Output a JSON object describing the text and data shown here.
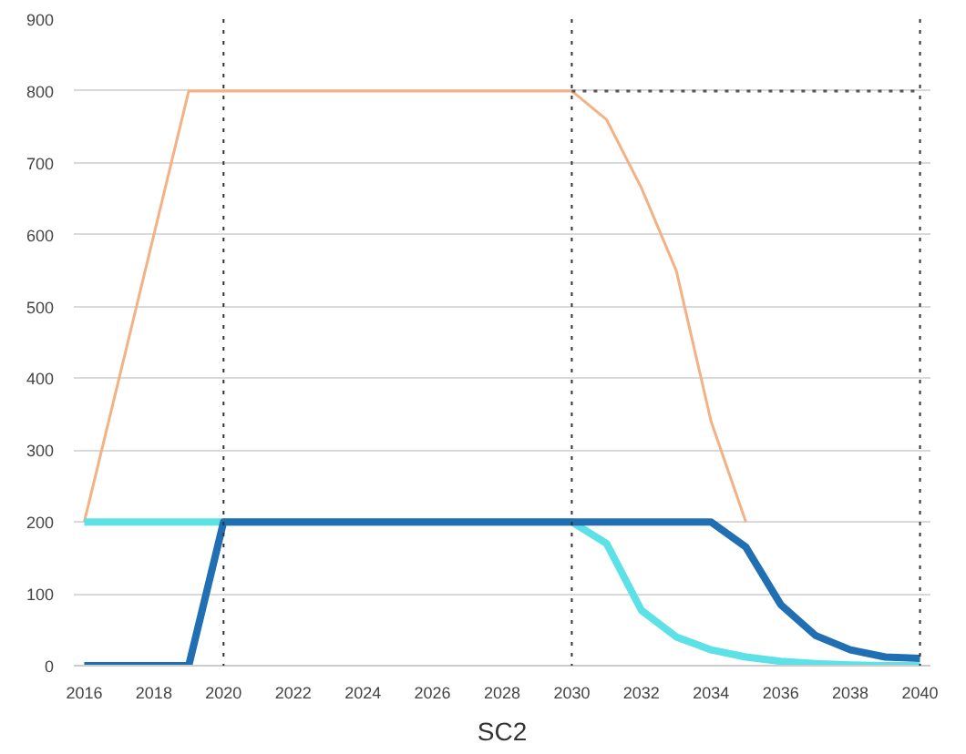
{
  "chart_data": {
    "type": "line",
    "title": "SC2",
    "x": [
      2016,
      2017,
      2018,
      2019,
      2020,
      2021,
      2022,
      2023,
      2024,
      2025,
      2026,
      2027,
      2028,
      2029,
      2030,
      2031,
      2032,
      2033,
      2034,
      2035,
      2036,
      2037,
      2038,
      2039,
      2040
    ],
    "series": [
      {
        "color": "#f4b183",
        "x": [
          2016,
          2019,
          2020,
          2030,
          2031,
          2032,
          2033,
          2034,
          2035
        ],
        "values": [
          200,
          800,
          800,
          800,
          760,
          665,
          550,
          340,
          200
        ]
      },
      {
        "color": "#5ce1e6",
        "values": [
          200,
          200,
          200,
          200,
          200,
          200,
          200,
          200,
          200,
          200,
          200,
          200,
          200,
          200,
          200,
          170,
          77,
          40,
          22,
          12,
          6,
          3,
          1,
          0,
          0
        ]
      },
      {
        "color": "#1f6fb2",
        "values": [
          0,
          0,
          0,
          0,
          200,
          200,
          200,
          200,
          200,
          200,
          200,
          200,
          200,
          200,
          200,
          200,
          200,
          200,
          200,
          165,
          85,
          42,
          22,
          12,
          10
        ]
      },
      {
        "color": "#555555",
        "x": [
          2030,
          2040
        ],
        "values": [
          800,
          800
        ],
        "line_style": "dotted"
      }
    ],
    "ref_lines": [
      {
        "axis": "x",
        "value": 2020,
        "color": "#333333",
        "line_style": "dotted"
      },
      {
        "axis": "x",
        "value": 2030,
        "color": "#333333",
        "line_style": "dotted"
      },
      {
        "axis": "x",
        "value": 2040,
        "color": "#333333",
        "line_style": "dotted"
      }
    ],
    "xlim": [
      2015.7,
      2040.3
    ],
    "ylim": [
      0,
      900
    ],
    "xticks": [
      2016,
      2018,
      2020,
      2022,
      2024,
      2026,
      2028,
      2030,
      2032,
      2034,
      2036,
      2038,
      2040
    ],
    "yticks": [
      0,
      100,
      200,
      300,
      400,
      500,
      600,
      700,
      800,
      900
    ],
    "grid": "y",
    "marker": "none",
    "line_style": "solid"
  }
}
